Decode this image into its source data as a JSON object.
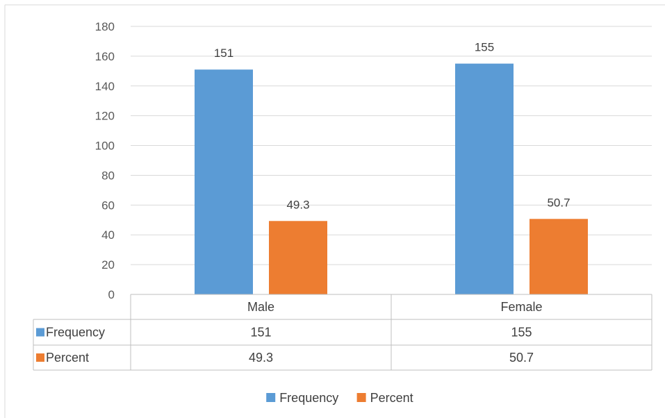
{
  "chart_data": {
    "type": "bar",
    "categories": [
      "Male",
      "Female"
    ],
    "series": [
      {
        "name": "Frequency",
        "values": [
          151,
          155
        ],
        "color": "#5B9BD5"
      },
      {
        "name": "Percent",
        "values": [
          49.3,
          50.7
        ],
        "color": "#ED7D31"
      }
    ],
    "ylim": [
      0,
      180
    ],
    "yticks": [
      0,
      20,
      40,
      60,
      80,
      100,
      120,
      140,
      160,
      180
    ],
    "data_labels": true,
    "grid": true,
    "data_table": true,
    "legend": "bottom",
    "title": "",
    "xlabel": "",
    "ylabel": ""
  }
}
